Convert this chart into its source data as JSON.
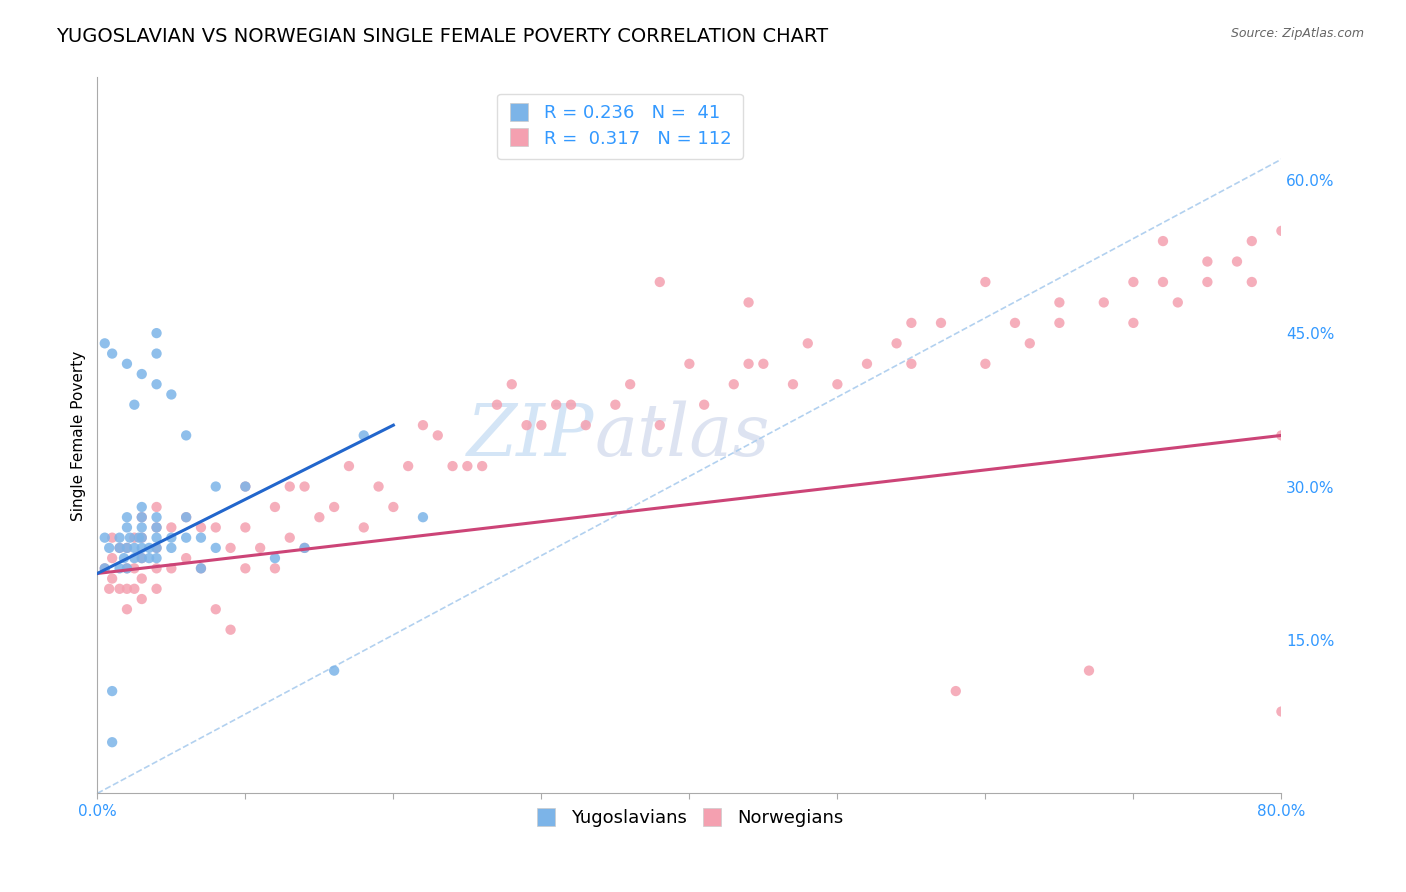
{
  "title": "YUGOSLAVIAN VS NORWEGIAN SINGLE FEMALE POVERTY CORRELATION CHART",
  "source": "Source: ZipAtlas.com",
  "ylabel": "Single Female Poverty",
  "xlim": [
    0.0,
    0.8
  ],
  "ylim": [
    0.0,
    0.7
  ],
  "xtick_positions": [
    0.0,
    0.1,
    0.2,
    0.3,
    0.4,
    0.5,
    0.6,
    0.7,
    0.8
  ],
  "xticklabels": [
    "0.0%",
    "",
    "",
    "",
    "",
    "",
    "",
    "",
    "80.0%"
  ],
  "ytick_positions": [
    0.15,
    0.3,
    0.45,
    0.6
  ],
  "ytick_labels": [
    "15.0%",
    "30.0%",
    "45.0%",
    "60.0%"
  ],
  "yugo_color": "#7cb4e8",
  "norw_color": "#f4a0b0",
  "yugo_line_color": "#2266cc",
  "norw_line_color": "#cc4477",
  "diag_line_color": "#aaccee",
  "legend_R_yugo": "0.236",
  "legend_N_yugo": "41",
  "legend_R_norw": "0.317",
  "legend_N_norw": "112",
  "watermark_zip": "ZIP",
  "watermark_atlas": "atlas",
  "title_fontsize": 14,
  "label_fontsize": 11,
  "tick_fontsize": 11,
  "legend_fontsize": 13,
  "yugo_scatter_x": [
    0.005,
    0.005,
    0.008,
    0.01,
    0.01,
    0.015,
    0.015,
    0.015,
    0.018,
    0.02,
    0.02,
    0.02,
    0.02,
    0.022,
    0.025,
    0.025,
    0.028,
    0.03,
    0.03,
    0.03,
    0.03,
    0.03,
    0.03,
    0.035,
    0.035,
    0.04,
    0.04,
    0.04,
    0.04,
    0.04,
    0.04,
    0.05,
    0.05,
    0.06,
    0.06,
    0.07,
    0.07,
    0.08,
    0.12,
    0.16,
    0.22
  ],
  "yugo_scatter_y": [
    0.22,
    0.25,
    0.24,
    0.05,
    0.1,
    0.22,
    0.24,
    0.25,
    0.23,
    0.22,
    0.24,
    0.26,
    0.27,
    0.25,
    0.23,
    0.24,
    0.25,
    0.23,
    0.24,
    0.25,
    0.26,
    0.27,
    0.28,
    0.23,
    0.24,
    0.23,
    0.24,
    0.25,
    0.26,
    0.27,
    0.4,
    0.24,
    0.25,
    0.25,
    0.27,
    0.22,
    0.25,
    0.24,
    0.23,
    0.12,
    0.27
  ],
  "yugo_scatter_x2": [
    0.005,
    0.01,
    0.02,
    0.025,
    0.03,
    0.04,
    0.04,
    0.05,
    0.06,
    0.08,
    0.1,
    0.14,
    0.18
  ],
  "yugo_scatter_y2": [
    0.44,
    0.43,
    0.42,
    0.38,
    0.41,
    0.43,
    0.45,
    0.39,
    0.35,
    0.3,
    0.3,
    0.24,
    0.35
  ],
  "norw_scatter_x": [
    0.005,
    0.008,
    0.01,
    0.01,
    0.01,
    0.015,
    0.015,
    0.02,
    0.02,
    0.02,
    0.02,
    0.025,
    0.025,
    0.025,
    0.03,
    0.03,
    0.03,
    0.03,
    0.03,
    0.04,
    0.04,
    0.04,
    0.04,
    0.04,
    0.05,
    0.05,
    0.06,
    0.06,
    0.07,
    0.07,
    0.08,
    0.08,
    0.09,
    0.09,
    0.1,
    0.1,
    0.1,
    0.11,
    0.12,
    0.12,
    0.13,
    0.13,
    0.14,
    0.14,
    0.15,
    0.16,
    0.17,
    0.18,
    0.19,
    0.2,
    0.21,
    0.22,
    0.23,
    0.24,
    0.25,
    0.26,
    0.27,
    0.28,
    0.29,
    0.3,
    0.31,
    0.32,
    0.33,
    0.35,
    0.36,
    0.38,
    0.4,
    0.41,
    0.43,
    0.44,
    0.45,
    0.47,
    0.48,
    0.5,
    0.52,
    0.54,
    0.55,
    0.57,
    0.58,
    0.6,
    0.62,
    0.63,
    0.65,
    0.67,
    0.68,
    0.7,
    0.72,
    0.73,
    0.75,
    0.77,
    0.78,
    0.8
  ],
  "norw_scatter_y": [
    0.22,
    0.2,
    0.21,
    0.23,
    0.25,
    0.2,
    0.24,
    0.18,
    0.2,
    0.22,
    0.24,
    0.2,
    0.22,
    0.25,
    0.19,
    0.21,
    0.23,
    0.25,
    0.27,
    0.2,
    0.22,
    0.24,
    0.26,
    0.28,
    0.22,
    0.26,
    0.23,
    0.27,
    0.22,
    0.26,
    0.18,
    0.26,
    0.16,
    0.24,
    0.22,
    0.26,
    0.3,
    0.24,
    0.22,
    0.28,
    0.25,
    0.3,
    0.24,
    0.3,
    0.27,
    0.28,
    0.32,
    0.26,
    0.3,
    0.28,
    0.32,
    0.36,
    0.35,
    0.32,
    0.32,
    0.32,
    0.38,
    0.4,
    0.36,
    0.36,
    0.38,
    0.38,
    0.36,
    0.38,
    0.4,
    0.36,
    0.42,
    0.38,
    0.4,
    0.42,
    0.42,
    0.4,
    0.44,
    0.4,
    0.42,
    0.44,
    0.42,
    0.46,
    0.1,
    0.42,
    0.46,
    0.44,
    0.46,
    0.12,
    0.48,
    0.46,
    0.5,
    0.48,
    0.5,
    0.52,
    0.5,
    0.35
  ],
  "norw_extra_x": [
    0.38,
    0.44,
    0.55,
    0.6,
    0.65,
    0.7,
    0.72,
    0.75,
    0.78,
    0.8,
    0.8
  ],
  "norw_extra_y": [
    0.5,
    0.48,
    0.46,
    0.5,
    0.48,
    0.5,
    0.54,
    0.52,
    0.54,
    0.55,
    0.08
  ]
}
